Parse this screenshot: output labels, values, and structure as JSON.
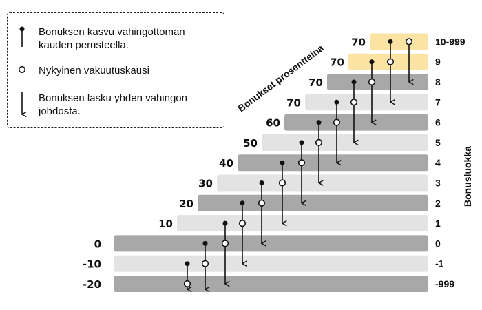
{
  "legend": {
    "item_rise": "Bonuksen kasvu vahingottoman kauden perusteella.",
    "item_current": "Nykyinen vakuutuskausi",
    "item_drop": "Bonuksen lasku yhden vahingon johdosta."
  },
  "title_diagonal": "Bonukset prosentteina",
  "title_vertical": "Bonusluokka",
  "colors": {
    "dark_step": "#a8a8a8",
    "light_step": "#e3e3e3",
    "highlight_step": "#fbe3a3",
    "ink": "#111111"
  },
  "steps": [
    {
      "bonus_class": "-999",
      "percent": "-20",
      "shade": "dark"
    },
    {
      "bonus_class": "-1",
      "percent": "-10",
      "shade": "light"
    },
    {
      "bonus_class": "0",
      "percent": "0",
      "shade": "dark"
    },
    {
      "bonus_class": "1",
      "percent": "10",
      "shade": "light"
    },
    {
      "bonus_class": "2",
      "percent": "20",
      "shade": "dark"
    },
    {
      "bonus_class": "3",
      "percent": "30",
      "shade": "light"
    },
    {
      "bonus_class": "4",
      "percent": "40",
      "shade": "dark"
    },
    {
      "bonus_class": "5",
      "percent": "50",
      "shade": "light"
    },
    {
      "bonus_class": "6",
      "percent": "60",
      "shade": "dark"
    },
    {
      "bonus_class": "7",
      "percent": "70",
      "shade": "light"
    },
    {
      "bonus_class": "8",
      "percent": "70",
      "shade": "dark"
    },
    {
      "bonus_class": "9",
      "percent": "70",
      "shade": "highlight"
    },
    {
      "bonus_class": "10-999",
      "percent": "70",
      "shade": "highlight"
    }
  ]
}
